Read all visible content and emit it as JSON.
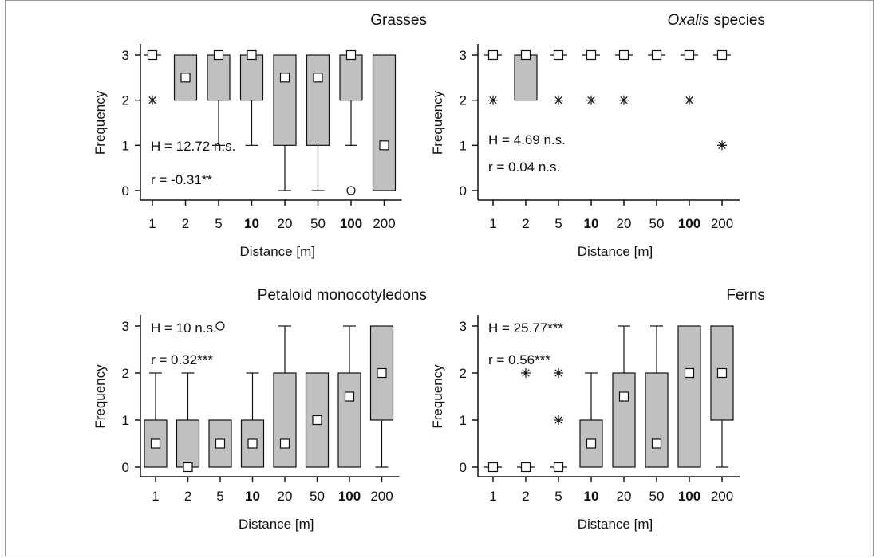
{
  "chart_data": [
    {
      "type": "box",
      "title": "Grasses",
      "xlabel": "Distance [m]",
      "ylabel": "Frequency",
      "categories": [
        "1",
        "2",
        "5",
        "10",
        "20",
        "50",
        "100",
        "200"
      ],
      "bold_categories": [
        "10",
        "100"
      ],
      "ylim": [
        0,
        3
      ],
      "yticks": [
        0,
        1,
        2,
        3
      ],
      "annotation": [
        "H = 12.72 n.s.",
        "r = -0.31**"
      ],
      "boxes": [
        {
          "q1": 3,
          "q3": 3,
          "whislo": 3,
          "whishi": 3,
          "median": 3,
          "outliers": [],
          "extremes": [
            2
          ]
        },
        {
          "q1": 2,
          "q3": 3,
          "whislo": 2,
          "whishi": 3,
          "median": 2.5,
          "outliers": [],
          "extremes": []
        },
        {
          "q1": 2,
          "q3": 3,
          "whislo": 1,
          "whishi": 3,
          "median": 3,
          "outliers": [],
          "extremes": []
        },
        {
          "q1": 2,
          "q3": 3,
          "whislo": 1,
          "whishi": 3,
          "median": 3,
          "outliers": [],
          "extremes": []
        },
        {
          "q1": 1,
          "q3": 3,
          "whislo": 0,
          "whishi": 3,
          "median": 2.5,
          "outliers": [],
          "extremes": []
        },
        {
          "q1": 1,
          "q3": 3,
          "whislo": 0,
          "whishi": 3,
          "median": 2.5,
          "outliers": [],
          "extremes": []
        },
        {
          "q1": 2,
          "q3": 3,
          "whislo": 1,
          "whishi": 3,
          "median": 3,
          "outliers": [
            0
          ],
          "extremes": []
        },
        {
          "q1": 0,
          "q3": 3,
          "whislo": 0,
          "whishi": 3,
          "median": 1,
          "outliers": [],
          "extremes": []
        }
      ]
    },
    {
      "type": "box",
      "title": "species",
      "title_italic": "Oxalis",
      "xlabel": "Distance [m]",
      "ylabel": "Frequency",
      "categories": [
        "1",
        "2",
        "5",
        "10",
        "20",
        "50",
        "100",
        "200"
      ],
      "bold_categories": [
        "10",
        "100"
      ],
      "ylim": [
        0,
        3
      ],
      "yticks": [
        0,
        1,
        2,
        3
      ],
      "annotation": [
        "H = 4.69 n.s.",
        "r = 0.04 n.s."
      ],
      "boxes": [
        {
          "q1": 3,
          "q3": 3,
          "whislo": 3,
          "whishi": 3,
          "median": 3,
          "outliers": [],
          "extremes": [
            2
          ]
        },
        {
          "q1": 2,
          "q3": 3,
          "whislo": 2,
          "whishi": 3,
          "median": 3,
          "outliers": [],
          "extremes": []
        },
        {
          "q1": 3,
          "q3": 3,
          "whislo": 3,
          "whishi": 3,
          "median": 3,
          "outliers": [],
          "extremes": [
            2
          ]
        },
        {
          "q1": 3,
          "q3": 3,
          "whislo": 3,
          "whishi": 3,
          "median": 3,
          "outliers": [],
          "extremes": [
            2
          ]
        },
        {
          "q1": 3,
          "q3": 3,
          "whislo": 3,
          "whishi": 3,
          "median": 3,
          "outliers": [],
          "extremes": [
            2
          ]
        },
        {
          "q1": 3,
          "q3": 3,
          "whislo": 3,
          "whishi": 3,
          "median": 3,
          "outliers": [],
          "extremes": []
        },
        {
          "q1": 3,
          "q3": 3,
          "whislo": 3,
          "whishi": 3,
          "median": 3,
          "outliers": [],
          "extremes": [
            2
          ]
        },
        {
          "q1": 3,
          "q3": 3,
          "whislo": 3,
          "whishi": 3,
          "median": 3,
          "outliers": [],
          "extremes": [
            1
          ]
        }
      ]
    },
    {
      "type": "box",
      "title": "Petaloid monocotyledons",
      "xlabel": "Distance [m]",
      "ylabel": "Frequency",
      "categories": [
        "1",
        "2",
        "5",
        "10",
        "20",
        "50",
        "100",
        "200"
      ],
      "bold_categories": [
        "10",
        "100"
      ],
      "ylim": [
        0,
        3
      ],
      "yticks": [
        0,
        1,
        2,
        3
      ],
      "annotation": [
        "H = 10 n.s.",
        "r = 0.32***"
      ],
      "boxes": [
        {
          "q1": 0,
          "q3": 1,
          "whislo": 0,
          "whishi": 2,
          "median": 0.5,
          "outliers": [],
          "extremes": []
        },
        {
          "q1": 0,
          "q3": 1,
          "whislo": 0,
          "whishi": 2,
          "median": 0,
          "outliers": [],
          "extremes": []
        },
        {
          "q1": 0,
          "q3": 1,
          "whislo": 0,
          "whishi": 1,
          "median": 0.5,
          "outliers": [
            3
          ],
          "extremes": []
        },
        {
          "q1": 0,
          "q3": 1,
          "whislo": 0,
          "whishi": 2,
          "median": 0.5,
          "outliers": [],
          "extremes": []
        },
        {
          "q1": 0,
          "q3": 2,
          "whislo": 0,
          "whishi": 3,
          "median": 0.5,
          "outliers": [],
          "extremes": []
        },
        {
          "q1": 0,
          "q3": 2,
          "whislo": 0,
          "whishi": 2,
          "median": 1,
          "outliers": [],
          "extremes": []
        },
        {
          "q1": 0,
          "q3": 2,
          "whislo": 0,
          "whishi": 3,
          "median": 1.5,
          "outliers": [],
          "extremes": []
        },
        {
          "q1": 1,
          "q3": 3,
          "whislo": 0,
          "whishi": 3,
          "median": 2,
          "outliers": [],
          "extremes": []
        }
      ]
    },
    {
      "type": "box",
      "title": "Ferns",
      "xlabel": "Distance [m]",
      "ylabel": "Frequency",
      "categories": [
        "1",
        "2",
        "5",
        "10",
        "20",
        "50",
        "100",
        "200"
      ],
      "bold_categories": [
        "10",
        "100"
      ],
      "ylim": [
        0,
        3
      ],
      "yticks": [
        0,
        1,
        2,
        3
      ],
      "annotation": [
        "H = 25.77***",
        "r = 0.56***"
      ],
      "boxes": [
        {
          "q1": 0,
          "q3": 0,
          "whislo": 0,
          "whishi": 0,
          "median": 0,
          "outliers": [],
          "extremes": []
        },
        {
          "q1": 0,
          "q3": 0,
          "whislo": 0,
          "whishi": 0,
          "median": 0,
          "outliers": [],
          "extremes": [
            2
          ]
        },
        {
          "q1": 0,
          "q3": 0,
          "whislo": 0,
          "whishi": 0,
          "median": 0,
          "outliers": [],
          "extremes": [
            1,
            2
          ]
        },
        {
          "q1": 0,
          "q3": 1,
          "whislo": 0,
          "whishi": 2,
          "median": 0.5,
          "outliers": [],
          "extremes": []
        },
        {
          "q1": 0,
          "q3": 2,
          "whislo": 0,
          "whishi": 3,
          "median": 1.5,
          "outliers": [],
          "extremes": []
        },
        {
          "q1": 0,
          "q3": 2,
          "whislo": 0,
          "whishi": 3,
          "median": 0.5,
          "outliers": [],
          "extremes": []
        },
        {
          "q1": 0,
          "q3": 3,
          "whislo": 0,
          "whishi": 3,
          "median": 2,
          "outliers": [],
          "extremes": []
        },
        {
          "q1": 1,
          "q3": 3,
          "whislo": 0,
          "whishi": 3,
          "median": 2,
          "outliers": [],
          "extremes": []
        }
      ]
    }
  ],
  "colors": {
    "box_fill": "#c0c0c0",
    "stroke": "#111111",
    "median_fill": "#ffffff"
  }
}
